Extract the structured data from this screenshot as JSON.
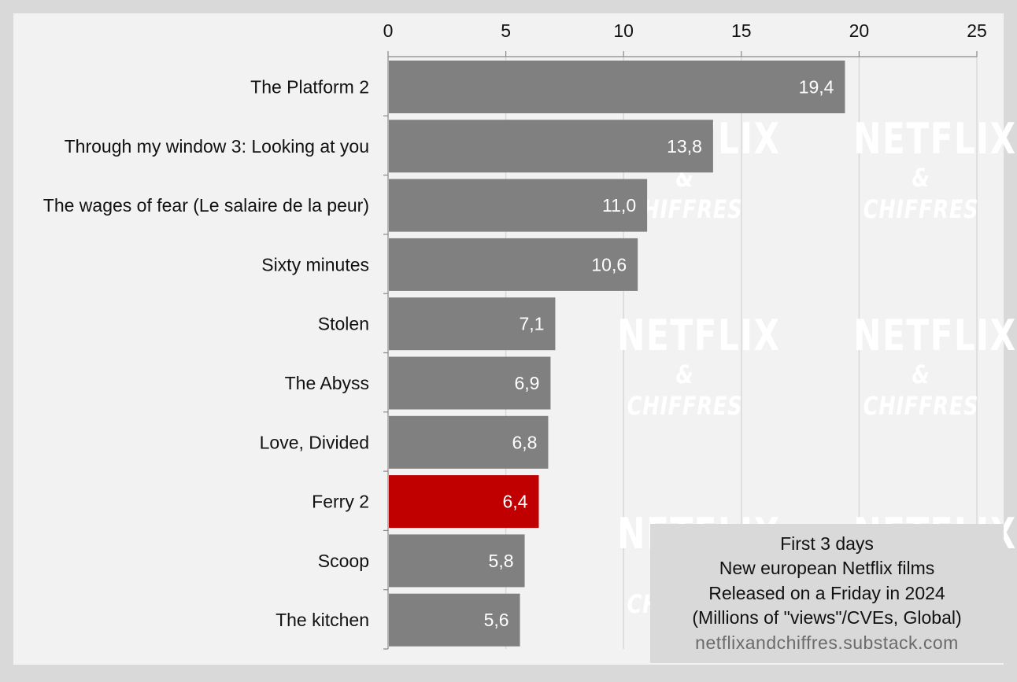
{
  "chart_data": {
    "type": "bar",
    "orientation": "horizontal",
    "categories": [
      "The Platform 2",
      "Through my window 3: Looking at you",
      "The wages of fear (Le salaire de la peur)",
      "Sixty minutes",
      "Stolen",
      "The Abyss",
      "Love, Divided",
      "Ferry 2",
      "Scoop",
      "The kitchen"
    ],
    "values": [
      19.4,
      13.8,
      11.0,
      10.6,
      7.1,
      6.9,
      6.8,
      6.4,
      5.8,
      5.6
    ],
    "value_labels": [
      "19,4",
      "13,8",
      "11,0",
      "10,6",
      "7,1",
      "6,9",
      "6,8",
      "6,4",
      "5,8",
      "5,6"
    ],
    "highlight": "Ferry 2",
    "xlim": [
      0,
      25
    ],
    "xticks": [
      0,
      5,
      10,
      15,
      20,
      25
    ],
    "x_axis_position": "top",
    "grid": true,
    "colors": {
      "bar": "#808080",
      "highlight": "#c00000",
      "plot_background": "#f2f2f2",
      "frame": "#d9d9d9",
      "gridline": "#d9d9d9"
    }
  },
  "info_box": {
    "line1": "First 3 days",
    "line2": "New european Netflix films",
    "line3": "Released on a Friday in 2024",
    "line4": "(Millions of \"views\"/CVEs, Global)",
    "url": "netflixandchiffres.substack.com"
  },
  "watermark": {
    "line1": "NETFLIX",
    "line2": "& CHIFFRES"
  }
}
